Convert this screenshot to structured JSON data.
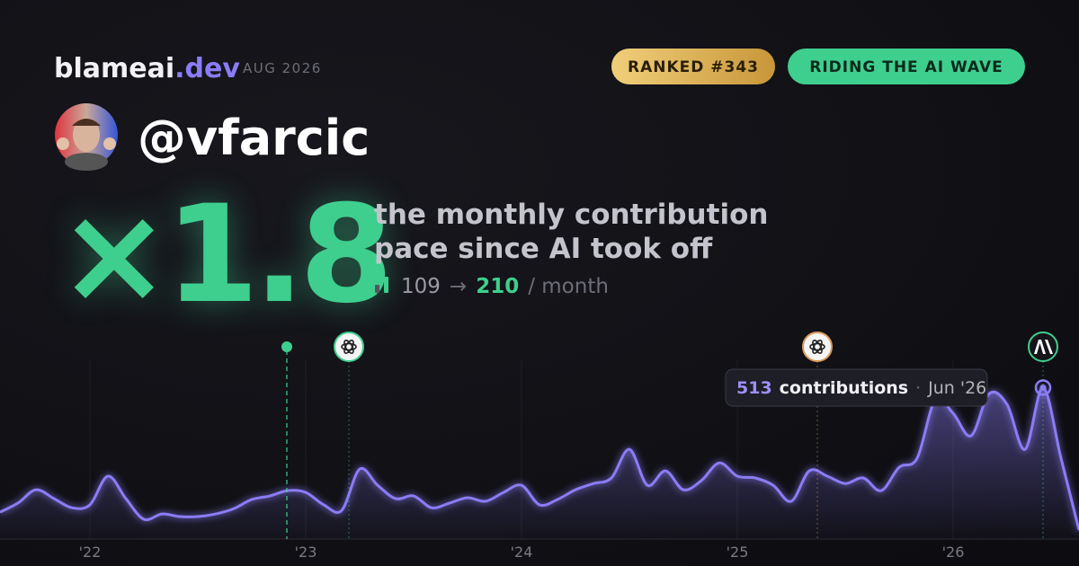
{
  "header": {
    "brand": "blameai",
    "brand_suffix": ".dev",
    "period": "AUG 2026"
  },
  "badges": [
    "RANKED #343",
    "RIDING THE AI WAVE"
  ],
  "profile": {
    "handle": "@vfarcic"
  },
  "headline": {
    "multiplier": "×1.8",
    "description": [
      "the monthly contribution",
      "pace since AI took off"
    ],
    "before": "109",
    "arrow": "→",
    "after": "210",
    "unit": "/ month"
  },
  "chart_data": {
    "type": "area",
    "color": "#8b7cf6",
    "categories": [
      null,
      null,
      null,
      null,
      null,
      "'22",
      null,
      null,
      null,
      null,
      null,
      null,
      null,
      null,
      null,
      null,
      null,
      "'23",
      null,
      null,
      null,
      null,
      null,
      null,
      null,
      null,
      null,
      null,
      null,
      "'24",
      null,
      null,
      null,
      null,
      null,
      null,
      null,
      null,
      null,
      null,
      null,
      "'25",
      null,
      null,
      null,
      null,
      null,
      null,
      null,
      null,
      null,
      null,
      null,
      "'26",
      null,
      null,
      null,
      null,
      null,
      null,
      null
    ],
    "values": [
      91,
      122,
      167,
      137,
      106,
      116,
      213,
      137,
      67,
      85,
      76,
      76,
      85,
      103,
      134,
      146,
      164,
      158,
      116,
      97,
      237,
      182,
      137,
      146,
      106,
      122,
      140,
      128,
      158,
      182,
      116,
      134,
      167,
      188,
      207,
      304,
      182,
      231,
      167,
      198,
      258,
      213,
      207,
      182,
      128,
      231,
      213,
      188,
      207,
      164,
      243,
      274,
      471,
      426,
      350,
      492,
      456,
      304,
      513,
      274,
      30
    ],
    "ylim": [
      0,
      560
    ],
    "tooltip": {
      "index": 58,
      "unit": "contributions",
      "separator": "·",
      "date": "Jun '26"
    }
  }
}
